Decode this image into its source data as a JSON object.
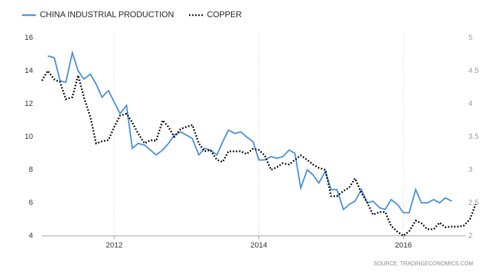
{
  "chart_data": {
    "type": "line",
    "source": "SOURCE: TRADINGECONOMICS.COM",
    "x": [
      2011.0,
      2011.08,
      2011.17,
      2011.25,
      2011.33,
      2011.42,
      2011.5,
      2011.58,
      2011.67,
      2011.75,
      2011.83,
      2011.92,
      2012.0,
      2012.08,
      2012.17,
      2012.25,
      2012.33,
      2012.42,
      2012.5,
      2012.58,
      2012.67,
      2012.75,
      2012.83,
      2012.92,
      2013.0,
      2013.08,
      2013.17,
      2013.25,
      2013.33,
      2013.42,
      2013.5,
      2013.58,
      2013.67,
      2013.75,
      2013.83,
      2013.92,
      2014.0,
      2014.08,
      2014.17,
      2014.25,
      2014.33,
      2014.42,
      2014.5,
      2014.58,
      2014.67,
      2014.75,
      2014.83,
      2014.92,
      2015.0,
      2015.08,
      2015.17,
      2015.25,
      2015.33,
      2015.42,
      2015.5,
      2015.58,
      2015.67,
      2015.75,
      2015.83,
      2015.92,
      2016.0,
      2016.08,
      2016.17,
      2016.25,
      2016.33,
      2016.42,
      2016.5,
      2016.58,
      2016.67,
      2016.75,
      2016.83,
      2016.92,
      2017.0
    ],
    "xlim": [
      2011,
      2017.05
    ],
    "xticks": [
      2012,
      2014,
      2016
    ],
    "ylim": [
      4,
      16
    ],
    "yticks": [
      4,
      6,
      8,
      10,
      12,
      14,
      16
    ],
    "y2lim": [
      2,
      5
    ],
    "y2ticks": [
      2,
      2.5,
      3,
      3.5,
      4,
      4.5,
      5
    ],
    "grid": true,
    "legend": "top-left",
    "series": [
      {
        "name": "CHINA INDUSTRIAL PRODUCTION",
        "color": "#4a90d9",
        "style": "solid",
        "values": [
          null,
          14.9,
          14.8,
          13.4,
          13.3,
          15.1,
          14.0,
          13.5,
          13.8,
          13.2,
          12.4,
          12.8,
          12.1,
          11.4,
          11.9,
          9.3,
          9.6,
          9.5,
          9.2,
          8.9,
          9.2,
          9.6,
          10.1,
          10.3,
          10.1,
          9.9,
          8.9,
          9.3,
          9.2,
          8.9,
          9.7,
          10.4,
          10.2,
          10.3,
          10.0,
          9.7,
          8.6,
          8.6,
          8.8,
          8.7,
          8.8,
          9.2,
          9.0,
          6.9,
          8.0,
          7.7,
          7.2,
          7.9,
          6.8,
          6.8,
          5.6,
          5.9,
          6.1,
          6.8,
          6.0,
          6.1,
          5.7,
          5.6,
          6.2,
          5.9,
          5.4,
          5.4,
          6.8,
          6.0,
          6.0,
          6.2,
          6.0,
          6.3,
          6.1,
          null,
          null,
          null,
          null
        ]
      },
      {
        "name": "COPPER",
        "color": "#000000",
        "style": "dotted",
        "axis": "y2",
        "values": [
          4.35,
          4.5,
          4.37,
          4.33,
          4.07,
          4.1,
          4.43,
          4.1,
          3.8,
          3.4,
          3.43,
          3.45,
          3.65,
          3.82,
          3.85,
          3.72,
          3.55,
          3.4,
          3.45,
          3.44,
          3.75,
          3.65,
          3.5,
          3.62,
          3.65,
          3.68,
          3.4,
          3.28,
          3.3,
          3.15,
          3.12,
          3.28,
          3.28,
          3.28,
          3.24,
          3.32,
          3.3,
          3.22,
          3.0,
          3.04,
          3.1,
          3.08,
          3.15,
          3.22,
          3.15,
          3.08,
          3.03,
          3.0,
          2.6,
          2.6,
          2.68,
          2.73,
          2.87,
          2.65,
          2.5,
          2.32,
          2.36,
          2.36,
          2.15,
          2.06,
          2.0,
          2.07,
          2.23,
          2.19,
          2.1,
          2.1,
          2.2,
          2.13,
          2.14,
          2.14,
          2.15,
          2.25,
          2.48
        ]
      }
    ]
  }
}
